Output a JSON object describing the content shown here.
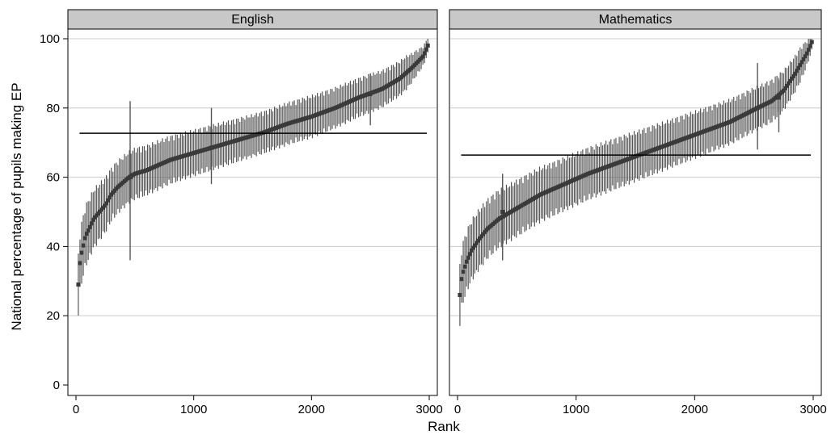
{
  "chart_data": {
    "type": "scatter",
    "ylabel": "National percentage of pupils making EP",
    "xlabel": "Rank",
    "xlim": [
      0,
      3000
    ],
    "ylim": [
      0,
      100
    ],
    "xticks": [
      0,
      1000,
      2000,
      3000
    ],
    "yticks": [
      0,
      20,
      40,
      60,
      80,
      100
    ],
    "grid": true,
    "colors": {
      "point": "#3a3a3a",
      "errorbar": "#555555",
      "refline": "#000000",
      "strip": "#c8c8c8",
      "grid": "#cccccc"
    },
    "panels": [
      {
        "title": "English",
        "reference_line": 72.7,
        "median_curve": [
          [
            20,
            29
          ],
          [
            30,
            34
          ],
          [
            40,
            37
          ],
          [
            60,
            40
          ],
          [
            80,
            43
          ],
          [
            110,
            45
          ],
          [
            150,
            48
          ],
          [
            200,
            50
          ],
          [
            250,
            52
          ],
          [
            300,
            55
          ],
          [
            350,
            57
          ],
          [
            400,
            58.5
          ],
          [
            450,
            60
          ],
          [
            500,
            61
          ],
          [
            600,
            62
          ],
          [
            700,
            63.5
          ],
          [
            800,
            65
          ],
          [
            900,
            66
          ],
          [
            1000,
            67
          ],
          [
            1200,
            69
          ],
          [
            1400,
            71
          ],
          [
            1600,
            73
          ],
          [
            1800,
            75.5
          ],
          [
            2000,
            77.5
          ],
          [
            2200,
            80
          ],
          [
            2400,
            83
          ],
          [
            2600,
            85.5
          ],
          [
            2750,
            88.5
          ],
          [
            2850,
            91.5
          ],
          [
            2950,
            95
          ],
          [
            3000,
            99
          ]
        ],
        "halfwidth_curve": [
          [
            20,
            8
          ],
          [
            100,
            8
          ],
          [
            300,
            7
          ],
          [
            600,
            6.5
          ],
          [
            1000,
            6
          ],
          [
            1500,
            5.5
          ],
          [
            2000,
            5.5
          ],
          [
            2500,
            5
          ],
          [
            2800,
            4.5
          ],
          [
            3000,
            2
          ]
        ],
        "outliers": [
          {
            "rank": 460,
            "y": 60,
            "low": 36,
            "high": 82
          },
          {
            "rank": 1150,
            "y": 68.5,
            "low": 58,
            "high": 80
          },
          {
            "rank": 2500,
            "y": 84,
            "low": 75,
            "high": 90
          }
        ]
      },
      {
        "title": "Mathematics",
        "reference_line": 66.4,
        "median_curve": [
          [
            20,
            26
          ],
          [
            30,
            30
          ],
          [
            50,
            33
          ],
          [
            80,
            36
          ],
          [
            120,
            39
          ],
          [
            180,
            42
          ],
          [
            250,
            45
          ],
          [
            350,
            48
          ],
          [
            500,
            51
          ],
          [
            700,
            55
          ],
          [
            900,
            58
          ],
          [
            1100,
            61
          ],
          [
            1300,
            63.5
          ],
          [
            1500,
            66
          ],
          [
            1700,
            68.5
          ],
          [
            1900,
            71
          ],
          [
            2100,
            73.5
          ],
          [
            2300,
            76
          ],
          [
            2500,
            79.5
          ],
          [
            2650,
            82
          ],
          [
            2750,
            85
          ],
          [
            2850,
            90
          ],
          [
            2950,
            96
          ],
          [
            3000,
            100
          ]
        ],
        "halfwidth_curve": [
          [
            20,
            8
          ],
          [
            100,
            8
          ],
          [
            400,
            7.5
          ],
          [
            800,
            7
          ],
          [
            1500,
            6.5
          ],
          [
            2200,
            6
          ],
          [
            2700,
            5.5
          ],
          [
            2900,
            4.5
          ],
          [
            3000,
            2
          ]
        ],
        "outliers": [
          {
            "rank": 380,
            "y": 50,
            "low": 36,
            "high": 61
          },
          {
            "rank": 2530,
            "y": 80,
            "low": 68,
            "high": 93
          },
          {
            "rank": 2710,
            "y": 83,
            "low": 73,
            "high": 88
          }
        ]
      }
    ]
  }
}
